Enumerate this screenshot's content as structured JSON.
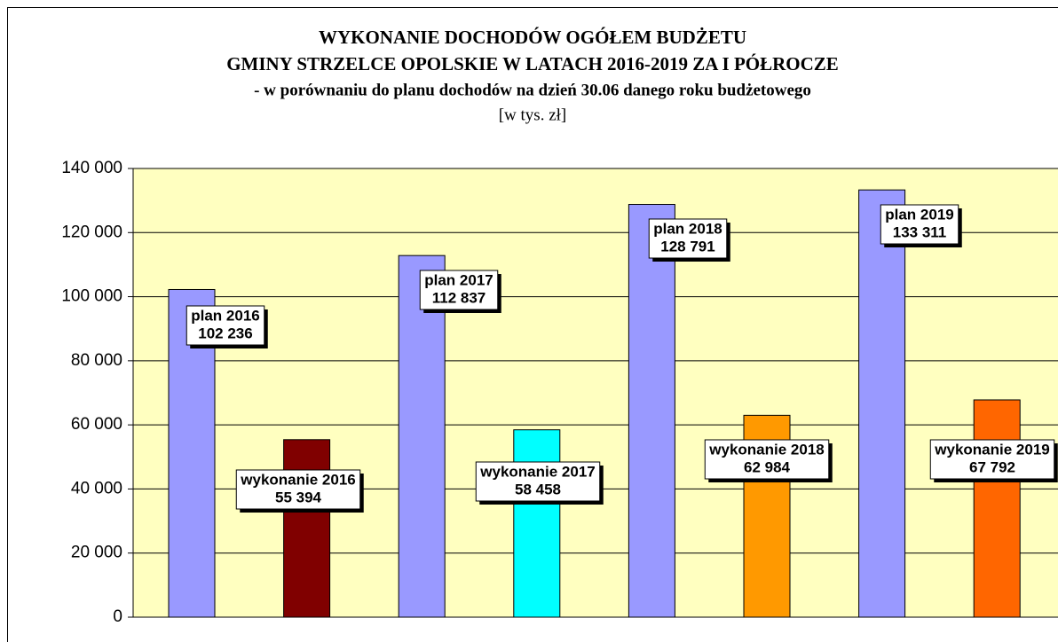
{
  "chart_data": {
    "type": "bar",
    "title": [
      "WYKONANIE DOCHODÓW OGÓŁEM BUDŻETU",
      "GMINY STRZELCE OPOLSKIE W LATACH 2016-2019 ZA I PÓŁROCZE"
    ],
    "subtitle": "- w porównaniu do planu dochodów na dzień 30.06 danego roku budżetowego",
    "unit": "[w tys. zł]",
    "categories": [
      "plan 2016",
      "wykonanie 2016",
      "plan 2017",
      "wykonanie 2017",
      "plan 2018",
      "wykonanie 2018",
      "plan 2019",
      "wykonanie 2019"
    ],
    "values": [
      102236,
      55394,
      112837,
      58458,
      128791,
      62984,
      133311,
      67792
    ],
    "value_labels": [
      "102 236",
      "55 394",
      "112 837",
      "58 458",
      "128 791",
      "62 984",
      "133 311",
      "67 792"
    ],
    "colors": [
      "#9999ff",
      "#800000",
      "#9999ff",
      "#00ffff",
      "#9999ff",
      "#ff9900",
      "#9999ff",
      "#ff6600"
    ],
    "ylim": [
      0,
      140000
    ],
    "yticks": [
      0,
      {
        "value": 20000,
        "label": "20 000"
      },
      {
        "value": 40000,
        "label": "40 000"
      },
      {
        "value": 60000,
        "label": "60 000"
      },
      {
        "value": 80000,
        "label": "80 000"
      },
      {
        "value": 100000,
        "label": "100 000"
      },
      {
        "value": 120000,
        "label": "120 000"
      },
      {
        "value": 140000,
        "label": "140 000"
      }
    ],
    "grid": true
  }
}
